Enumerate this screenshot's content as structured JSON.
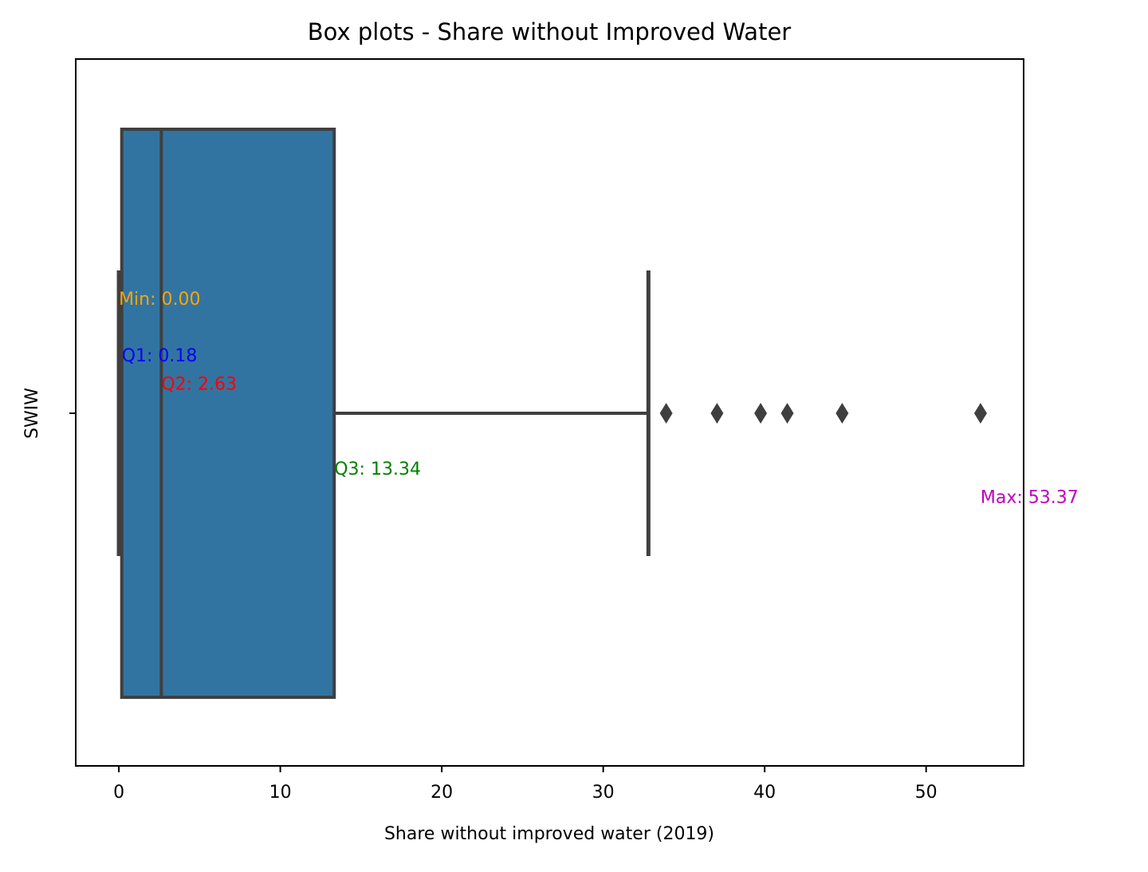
{
  "chart_data": {
    "type": "box",
    "title": "Box plots - Share without Improved Water",
    "xlabel": "Share without improved water (2019)",
    "ylabel": "SWIW",
    "xlim": [
      -2.67,
      56.04
    ],
    "x_ticks": [
      0,
      10,
      20,
      30,
      40,
      50
    ],
    "x_tick_labels": [
      "0",
      "10",
      "20",
      "30",
      "40",
      "50"
    ],
    "y_tick_labels": [
      ""
    ],
    "grid": false,
    "box": {
      "q1": 0.18,
      "median": 2.63,
      "q3": 13.34,
      "whisker_low": 0.0,
      "whisker_high": 32.8,
      "outliers": [
        33.9,
        37.05,
        39.75,
        41.4,
        44.8,
        53.37
      ]
    },
    "annotations": [
      {
        "text": "Min: 0.00",
        "x": 0.0,
        "y_offset": -0.4,
        "color": "#ffa500"
      },
      {
        "text": "Q1: 0.18",
        "x": 0.18,
        "y_offset": -0.2,
        "color": "#0000ff"
      },
      {
        "text": "Q2: 2.63",
        "x": 2.63,
        "y_offset": -0.1,
        "color": "#ff0000"
      },
      {
        "text": "Q3: 13.34",
        "x": 13.34,
        "y_offset": 0.2,
        "color": "#008000"
      },
      {
        "text": "Max: 53.37",
        "x": 53.37,
        "y_offset": 0.3,
        "color": "#bf00bf"
      }
    ],
    "colors": {
      "box_fill": "#3274a1",
      "line": "#3f3f3f",
      "outlier": "#3f3f3f",
      "axes": "#000000"
    }
  }
}
